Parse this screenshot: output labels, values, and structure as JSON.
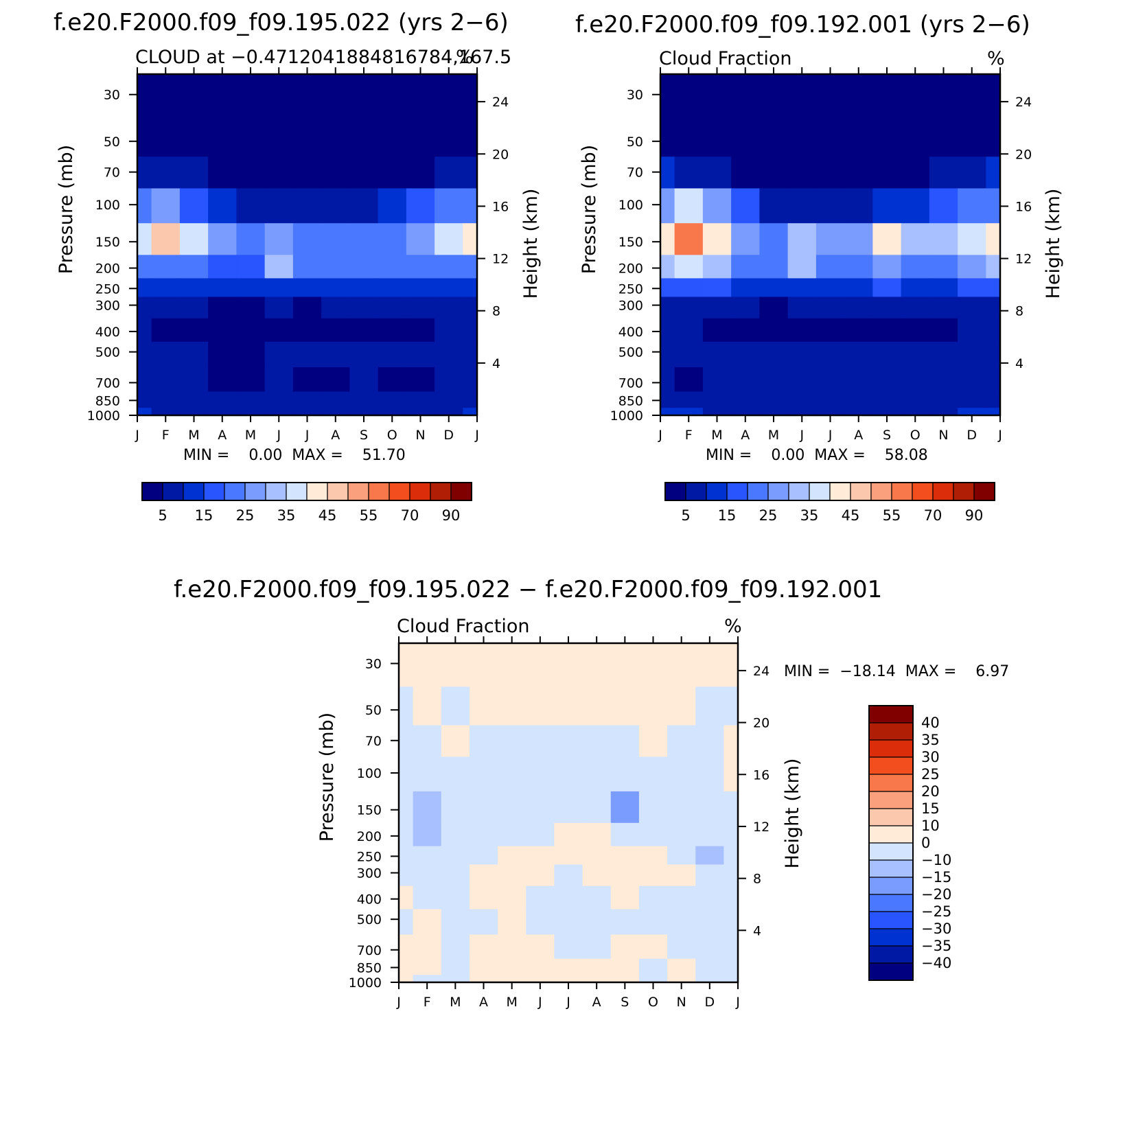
{
  "chart_data": [
    {
      "type": "heatmap",
      "id": "top-left",
      "title": "f.e20.F2000.f09_f09.195.022 (yrs 2−6)",
      "subtitle_left": "CLOUD at −0.4712041884816784,167.5",
      "subtitle_right": "%",
      "ylabel_left": "Pressure (mb)",
      "ylabel_right": "Height (km)",
      "x_ticks": [
        "J",
        "F",
        "M",
        "A",
        "M",
        "J",
        "J",
        "A",
        "S",
        "O",
        "N",
        "D",
        "J"
      ],
      "pressure_ticks": [
        "30",
        "50",
        "70",
        "100",
        "150",
        "200",
        "250",
        "300",
        "400",
        "500",
        "700",
        "850",
        "1000"
      ],
      "pressure_values": [
        30,
        50,
        70,
        100,
        150,
        200,
        250,
        300,
        400,
        500,
        700,
        850,
        1000
      ],
      "height_ticks": [
        "24",
        "20",
        "16",
        "12",
        "8",
        "4"
      ],
      "height_values": [
        24,
        20,
        16,
        12,
        8,
        4
      ],
      "minmax": "MIN =    0.00  MAX =    51.70",
      "min": 0.0,
      "max": 51.7,
      "colorbar_labels": [
        "5",
        "15",
        "25",
        "35",
        "45",
        "55",
        "70",
        "90"
      ],
      "levels": [
        5,
        10,
        15,
        20,
        25,
        30,
        35,
        40,
        45,
        50,
        55,
        60,
        70,
        80,
        90
      ],
      "grid": [
        [
          1,
          1,
          1,
          1,
          1,
          1,
          1,
          1,
          1,
          1,
          1,
          1,
          1
        ],
        [
          1,
          1,
          1,
          1,
          1,
          1,
          1,
          1,
          1,
          1,
          1,
          1,
          1
        ],
        [
          8,
          6,
          5,
          3,
          2,
          1,
          1,
          1,
          1,
          2,
          3,
          5,
          8
        ],
        [
          20,
          25,
          18,
          10,
          6,
          5,
          5,
          5,
          6,
          10,
          15,
          20,
          22
        ],
        [
          38,
          46,
          35,
          25,
          20,
          28,
          22,
          22,
          22,
          24,
          28,
          38,
          40
        ],
        [
          22,
          24,
          20,
          16,
          18,
          30,
          20,
          20,
          20,
          20,
          20,
          22,
          22
        ],
        [
          12,
          13,
          12,
          10,
          10,
          12,
          11,
          11,
          11,
          11,
          12,
          13,
          12
        ],
        [
          7,
          7,
          6,
          4,
          3,
          6,
          4,
          5,
          6,
          5,
          6,
          7,
          7
        ],
        [
          6,
          4,
          2,
          1,
          1,
          4,
          1,
          3,
          4,
          2,
          3,
          5,
          6
        ],
        [
          9,
          7,
          5,
          4,
          4,
          6,
          5,
          5,
          6,
          5,
          5,
          7,
          9
        ],
        [
          7,
          6,
          5,
          4,
          4,
          5,
          4,
          4,
          5,
          4,
          4,
          6,
          7
        ],
        [
          8,
          7,
          6,
          5,
          5,
          6,
          5,
          5,
          6,
          5,
          5,
          7,
          8
        ],
        [
          10,
          9,
          8,
          8,
          8,
          8,
          8,
          8,
          8,
          8,
          8,
          9,
          10
        ]
      ]
    },
    {
      "type": "heatmap",
      "id": "top-right",
      "title": "f.e20.F2000.f09_f09.192.001 (yrs 2−6)",
      "subtitle_left": "Cloud Fraction",
      "subtitle_right": "%",
      "ylabel_left": "Pressure (mb)",
      "ylabel_right": "Height (km)",
      "x_ticks": [
        "J",
        "F",
        "M",
        "A",
        "M",
        "J",
        "J",
        "A",
        "S",
        "O",
        "N",
        "D",
        "J"
      ],
      "pressure_ticks": [
        "30",
        "50",
        "70",
        "100",
        "150",
        "200",
        "250",
        "300",
        "400",
        "500",
        "700",
        "850",
        "1000"
      ],
      "pressure_values": [
        30,
        50,
        70,
        100,
        150,
        200,
        250,
        300,
        400,
        500,
        700,
        850,
        1000
      ],
      "height_ticks": [
        "24",
        "20",
        "16",
        "12",
        "8",
        "4"
      ],
      "height_values": [
        24,
        20,
        16,
        12,
        8,
        4
      ],
      "minmax": "MIN =    0.00  MAX =    58.08",
      "min": 0.0,
      "max": 58.08,
      "colorbar_labels": [
        "5",
        "15",
        "25",
        "35",
        "45",
        "55",
        "70",
        "90"
      ],
      "levels": [
        5,
        10,
        15,
        20,
        25,
        30,
        35,
        40,
        45,
        50,
        55,
        60,
        70,
        80,
        90
      ],
      "grid": [
        [
          1,
          1,
          1,
          1,
          1,
          1,
          1,
          1,
          1,
          1,
          1,
          1,
          1
        ],
        [
          1,
          1,
          1,
          1,
          1,
          1,
          1,
          1,
          1,
          1,
          1,
          1,
          1
        ],
        [
          10,
          8,
          5,
          3,
          2,
          1,
          1,
          1,
          2,
          3,
          5,
          7,
          10
        ],
        [
          25,
          35,
          25,
          15,
          8,
          6,
          6,
          7,
          10,
          14,
          18,
          22,
          24
        ],
        [
          42,
          56,
          42,
          28,
          22,
          30,
          25,
          28,
          42,
          30,
          32,
          36,
          42
        ],
        [
          30,
          38,
          30,
          20,
          20,
          34,
          22,
          22,
          28,
          22,
          24,
          28,
          30
        ],
        [
          16,
          18,
          15,
          12,
          12,
          14,
          13,
          13,
          15,
          13,
          14,
          16,
          16
        ],
        [
          8,
          8,
          7,
          5,
          4,
          7,
          5,
          6,
          7,
          6,
          6,
          8,
          8
        ],
        [
          6,
          5,
          3,
          2,
          1,
          4,
          1,
          3,
          2,
          1,
          3,
          5,
          6
        ],
        [
          9,
          8,
          6,
          5,
          5,
          7,
          6,
          6,
          7,
          6,
          6,
          8,
          9
        ],
        [
          7,
          3,
          6,
          5,
          5,
          6,
          5,
          5,
          6,
          5,
          5,
          7,
          7
        ],
        [
          9,
          8,
          7,
          6,
          6,
          7,
          6,
          6,
          7,
          6,
          6,
          8,
          9
        ],
        [
          11,
          10,
          9,
          9,
          9,
          9,
          9,
          9,
          9,
          9,
          9,
          10,
          11
        ]
      ]
    },
    {
      "type": "heatmap",
      "id": "bottom-diff",
      "title": "f.e20.F2000.f09_f09.195.022 − f.e20.F2000.f09_f09.192.001",
      "subtitle_left": "Cloud Fraction",
      "subtitle_right": "%",
      "ylabel_left": "Pressure (mb)",
      "ylabel_right": "Height (km)",
      "x_ticks": [
        "J",
        "F",
        "M",
        "A",
        "M",
        "J",
        "J",
        "A",
        "S",
        "O",
        "N",
        "D",
        "J"
      ],
      "pressure_ticks": [
        "30",
        "50",
        "70",
        "100",
        "150",
        "200",
        "250",
        "300",
        "400",
        "500",
        "700",
        "850",
        "1000"
      ],
      "pressure_values": [
        30,
        50,
        70,
        100,
        150,
        200,
        250,
        300,
        400,
        500,
        700,
        850,
        1000
      ],
      "height_ticks": [
        "24",
        "20",
        "16",
        "12",
        "8",
        "4"
      ],
      "height_values": [
        24,
        20,
        16,
        12,
        8,
        4
      ],
      "minmax": "MIN =  −18.14  MAX =    6.97",
      "min": -18.14,
      "max": 6.97,
      "colorbar_labels": [
        "40",
        "35",
        "30",
        "25",
        "20",
        "15",
        "10",
        "0",
        "−10",
        "−15",
        "−20",
        "−25",
        "−30",
        "−35",
        "−40"
      ],
      "levels": [
        -40,
        -35,
        -30,
        -25,
        -20,
        -15,
        -10,
        0,
        10,
        15,
        20,
        25,
        30,
        35,
        40
      ],
      "grid": [
        [
          2,
          2,
          2,
          2,
          2,
          2,
          2,
          2,
          2,
          2,
          2,
          2,
          2
        ],
        [
          -2,
          2,
          -2,
          2,
          2,
          2,
          2,
          2,
          2,
          2,
          2,
          -2,
          -2
        ],
        [
          -2,
          -2,
          2,
          -2,
          -2,
          -2,
          -2,
          -2,
          -2,
          2,
          -2,
          -2,
          2
        ],
        [
          -2,
          -2,
          -2,
          -2,
          -2,
          -2,
          -2,
          -2,
          -3,
          -2,
          -2,
          -2,
          2
        ],
        [
          -3,
          -13,
          -5,
          -3,
          -3,
          -3,
          -3,
          -3,
          -16,
          -5,
          -3,
          -3,
          -2
        ],
        [
          -3,
          -12,
          -4,
          -3,
          -3,
          -3,
          2,
          2,
          -3,
          -2,
          -3,
          -3,
          -3
        ],
        [
          -2,
          -3,
          -3,
          -3,
          2,
          2,
          2,
          2,
          2,
          2,
          -2,
          -12,
          -3
        ],
        [
          -2,
          -2,
          -2,
          2,
          2,
          2,
          -2,
          2,
          2,
          2,
          2,
          -3,
          -2
        ],
        [
          2,
          -2,
          -2,
          2,
          2,
          -2,
          -2,
          -2,
          2,
          -2,
          -2,
          -2,
          -2
        ],
        [
          -2,
          2,
          -2,
          -2,
          2,
          -2,
          -2,
          -2,
          -2,
          -2,
          -2,
          -2,
          -2
        ],
        [
          2,
          2,
          -2,
          2,
          2,
          2,
          -2,
          -2,
          2,
          2,
          -2,
          -2,
          -2
        ],
        [
          2,
          2,
          -2,
          2,
          2,
          2,
          2,
          2,
          2,
          -2,
          2,
          -2,
          -2
        ],
        [
          2,
          -2,
          -2,
          2,
          2,
          2,
          2,
          2,
          2,
          -2,
          2,
          -2,
          -2
        ]
      ]
    }
  ],
  "palette": {
    "abs": [
      "#000080",
      "#0019a5",
      "#0032d2",
      "#2855ff",
      "#4a78ff",
      "#7a9cff",
      "#a8c0ff",
      "#d3e4ff",
      "#ffebd7",
      "#fcc8ad",
      "#faa07d",
      "#f8784c",
      "#f24e1e",
      "#dc2d0a",
      "#b01f05",
      "#800000"
    ],
    "diff": [
      "#000080",
      "#0019a5",
      "#0032d2",
      "#2855ff",
      "#4a78ff",
      "#7a9cff",
      "#a8c0ff",
      "#d3e4ff",
      "#ffebd7",
      "#fcc8ad",
      "#faa07d",
      "#f8784c",
      "#f24e1e",
      "#dc2d0a",
      "#b01f05",
      "#800000"
    ]
  }
}
